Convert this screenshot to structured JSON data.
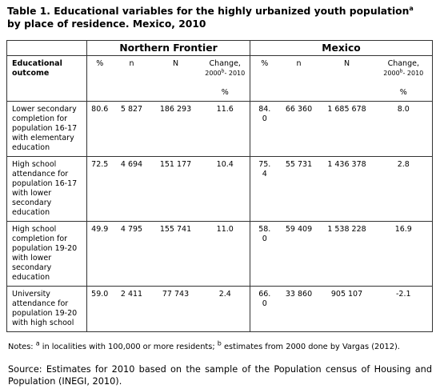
{
  "title": {
    "line1": "Table 1. Educational variables for the highly urbanized youth population",
    "sup": "a",
    "line2": "by  place of residence. Mexico, 2010"
  },
  "table": {
    "outcome_header": "Educational outcome",
    "groups": [
      {
        "name": "Northern Frontier",
        "pct": "%",
        "n": "n",
        "N": "N",
        "change": "Change,",
        "year": "2000",
        "sup": "b",
        "range": "- 2010",
        "unit": "%"
      },
      {
        "name": "Mexico",
        "pct": "%",
        "n": "n",
        "N": "N",
        "change": "Change,",
        "year": "2000",
        "sup": "b",
        "range": "- 2010",
        "unit": "%"
      }
    ],
    "rows": [
      {
        "label": "Lower secondary completion for population  16-17 with elementary education",
        "cells": [
          "80.6",
          "5 827",
          "186 293",
          "11.6",
          "84.0",
          "66 360",
          "1 685 678",
          "8.0"
        ]
      },
      {
        "label": "High school attendance for population 16-17 with lower secondary education",
        "cells": [
          "72.5",
          "4 694",
          "151 177",
          "10.4",
          "75.4",
          "55 731",
          "1 436 378",
          "2.8"
        ]
      },
      {
        "label": "High school completion for population 19-20 with lower secondary education",
        "cells": [
          "49.9",
          "4 795",
          "155 741",
          "11.0",
          "58.0",
          "59 409",
          "1 538 228",
          "16.9"
        ]
      },
      {
        "label": "University attendance for population 19-20 with high school",
        "cells": [
          "59.0",
          "2 411",
          "77 743",
          "2.4",
          "66.0",
          "33 860",
          "905 107",
          "-2.1"
        ]
      }
    ]
  },
  "notes": {
    "prefix": "Notes: ",
    "sup_a": "a",
    "text_a": " in localities with 100,000 or more residents; ",
    "sup_b": "b",
    "text_b": " estimates from 2000 done by Vargas (2012)."
  },
  "source": {
    "text": "Source: Estimates for 2010 based on the sample of the Population census of Housing and Population (",
    "abbr": "INEGI",
    "end": ", 2010)."
  }
}
